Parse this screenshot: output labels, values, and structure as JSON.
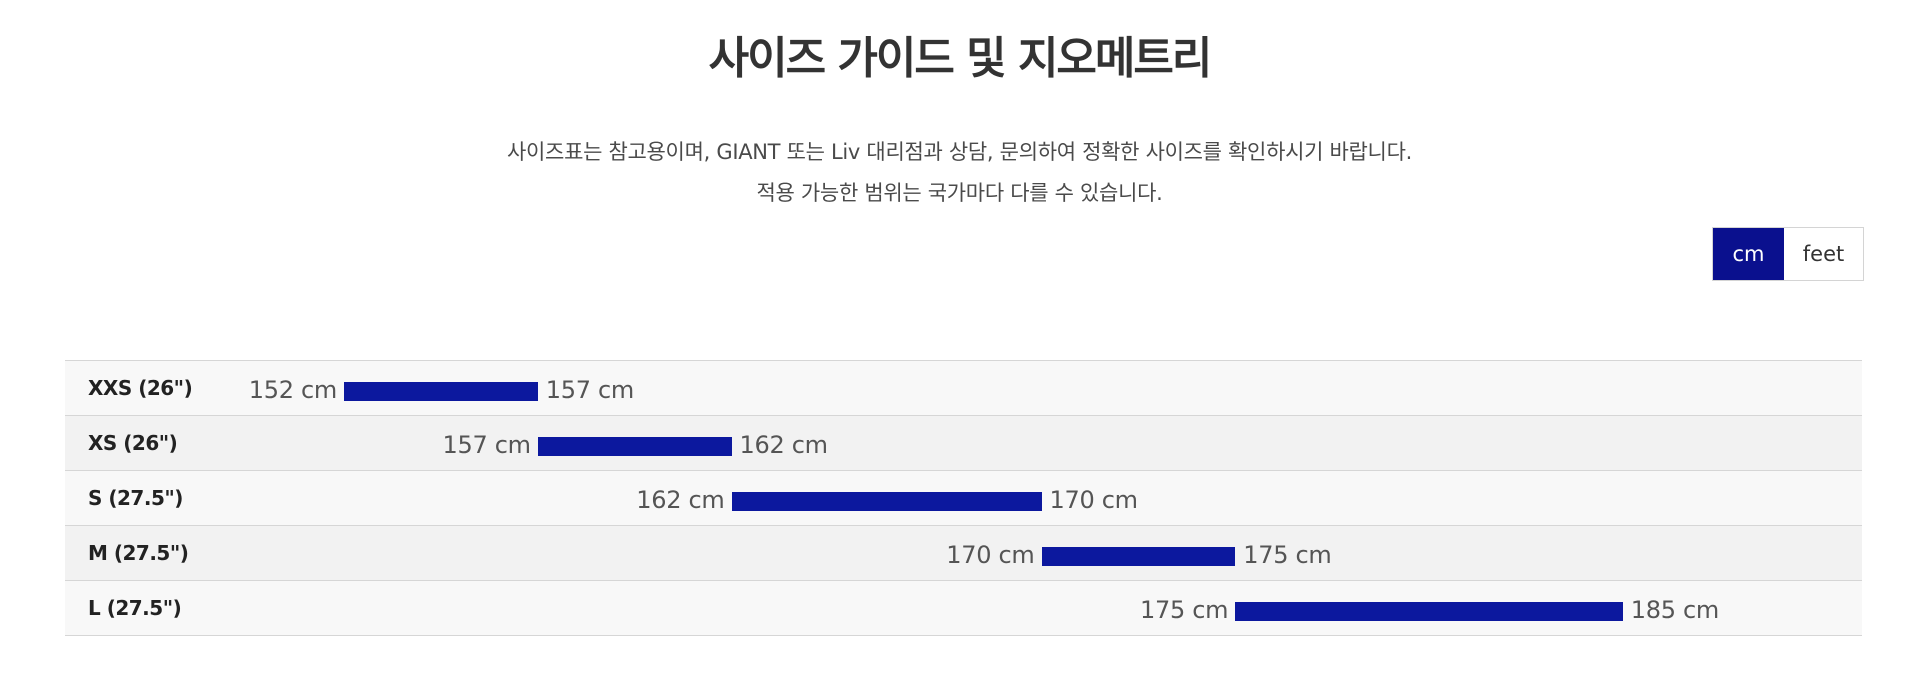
{
  "title": "사이즈 가이드 및 지오메트리",
  "description": {
    "line1": "사이즈표는 참고용이며, GIANT 또는 Liv 대리점과 상담, 문의하여 정확한 사이즈를 확인하시기 바랍니다.",
    "line2": "적용 가능한 범위는 국가마다 다를 수 있습니다."
  },
  "unit_toggle": {
    "options": [
      "cm",
      "feet"
    ],
    "selected": "cm"
  },
  "colors": {
    "accent": "#0a108e",
    "bar": "#0c189e",
    "row_odd": "#f8f8f8",
    "row_even": "#f2f2f2"
  },
  "sizes": [
    {
      "label": "XXS (26\")",
      "min": 152,
      "max": 157,
      "min_text": "152 cm",
      "max_text": "157 cm"
    },
    {
      "label": "XS (26\")",
      "min": 157,
      "max": 162,
      "min_text": "157 cm",
      "max_text": "162 cm"
    },
    {
      "label": "S (27.5\")",
      "min": 162,
      "max": 170,
      "min_text": "162 cm",
      "max_text": "170 cm"
    },
    {
      "label": "M (27.5\")",
      "min": 170,
      "max": 175,
      "min_text": "170 cm",
      "max_text": "175 cm"
    },
    {
      "label": "L (27.5\")",
      "min": 175,
      "max": 185,
      "min_text": "175 cm",
      "max_text": "185 cm"
    }
  ]
}
